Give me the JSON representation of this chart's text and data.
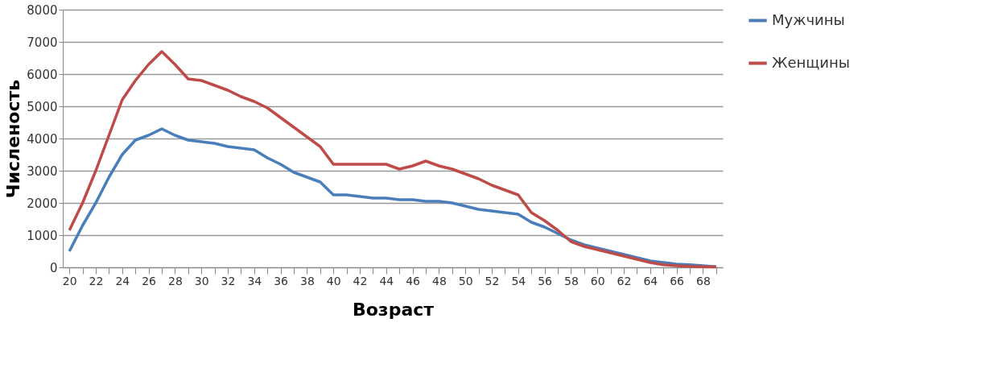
{
  "chart_data": {
    "type": "line",
    "xlabel": "Возраст",
    "ylabel": "Численость",
    "categories": [
      "20",
      null,
      "22",
      null,
      "24",
      null,
      "26",
      null,
      "28",
      null,
      "30",
      null,
      "32",
      null,
      "34",
      null,
      "36",
      null,
      "38",
      null,
      "40",
      null,
      "42",
      null,
      "44",
      null,
      "46",
      null,
      "48",
      null,
      "50",
      null,
      "52",
      null,
      "54",
      null,
      "56",
      null,
      "58",
      null,
      "60",
      null,
      "62",
      null,
      "64",
      null,
      "66",
      null,
      "68",
      null
    ],
    "series": [
      {
        "name": "Мужчины",
        "color": "#4a7ebb",
        "values": [
          500,
          1300,
          2000,
          2800,
          3500,
          3950,
          4100,
          4300,
          4100,
          3950,
          3900,
          3850,
          3750,
          3700,
          3650,
          3400,
          3200,
          2950,
          2800,
          2650,
          2250,
          2250,
          2200,
          2150,
          2150,
          2100,
          2100,
          2050,
          2050,
          2000,
          1900,
          1800,
          1750,
          1700,
          1650,
          1400,
          1250,
          1050,
          850,
          700,
          600,
          500,
          400,
          300,
          200,
          150,
          100,
          80,
          50,
          20
        ]
      },
      {
        "name": "Женщины",
        "color": "#be4b48",
        "values": [
          1150,
          2000,
          3000,
          4100,
          5200,
          5800,
          6300,
          6700,
          6300,
          5850,
          5800,
          5650,
          5500,
          5300,
          5150,
          4950,
          4650,
          4350,
          4050,
          3750,
          3200,
          3200,
          3200,
          3200,
          3200,
          3050,
          3150,
          3300,
          3150,
          3050,
          2900,
          2750,
          2550,
          2400,
          2250,
          1700,
          1450,
          1150,
          800,
          650,
          550,
          450,
          350,
          250,
          150,
          80,
          50,
          30,
          20,
          10
        ]
      }
    ],
    "ylim": [
      0,
      8000
    ],
    "yticks": [
      0,
      1000,
      2000,
      3000,
      4000,
      5000,
      6000,
      7000,
      8000
    ],
    "grid": "y",
    "legend": "right",
    "marker": "none",
    "line_style": "solid"
  }
}
